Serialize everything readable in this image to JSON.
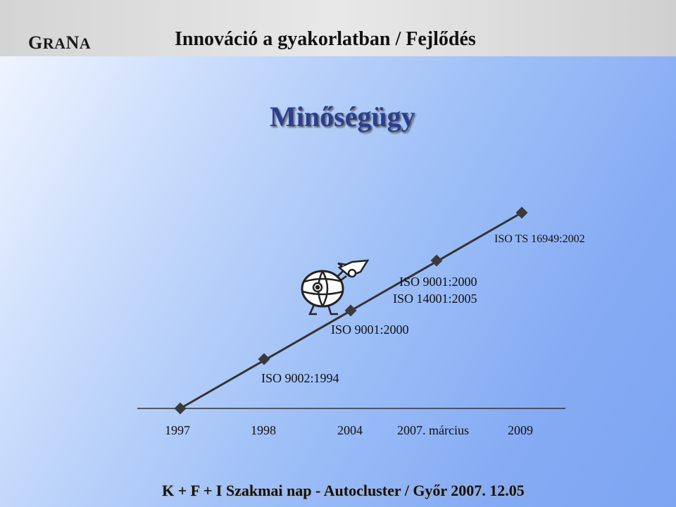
{
  "header": {
    "logo_G": "G",
    "logo_RA": "RA",
    "logo_N": "N",
    "logo_A": "A",
    "title": "Innováció a gyakorlatban / Fejlődés"
  },
  "main": {
    "title": "Minőségügy"
  },
  "timeline": {
    "milestones": [
      {
        "standard": "ISO 9002:1994"
      },
      {
        "standard": "ISO 9001:2000"
      },
      {
        "standard": "ISO 9001:2000\nISO 14001:2005"
      },
      {
        "standard": "ISO TS 16949:2002"
      }
    ],
    "labels": {
      "iso9002": "ISO 9002:1994",
      "iso9001": "ISO 9001:2000",
      "iso9001b": "ISO 9001:2000",
      "iso14001": "ISO 14001:2005",
      "isots": "ISO TS 16949:2002"
    },
    "years": [
      "1997",
      "1998",
      "2004",
      "2007. március",
      "2009"
    ]
  },
  "footer": {
    "text": "K + F + I Szakmai nap  -  Autocluster  /  Győr 2007. 12.05"
  },
  "colors": {
    "title_blue": "#2a3f8f",
    "line": "#333333",
    "marker": "#3a3a3a"
  }
}
